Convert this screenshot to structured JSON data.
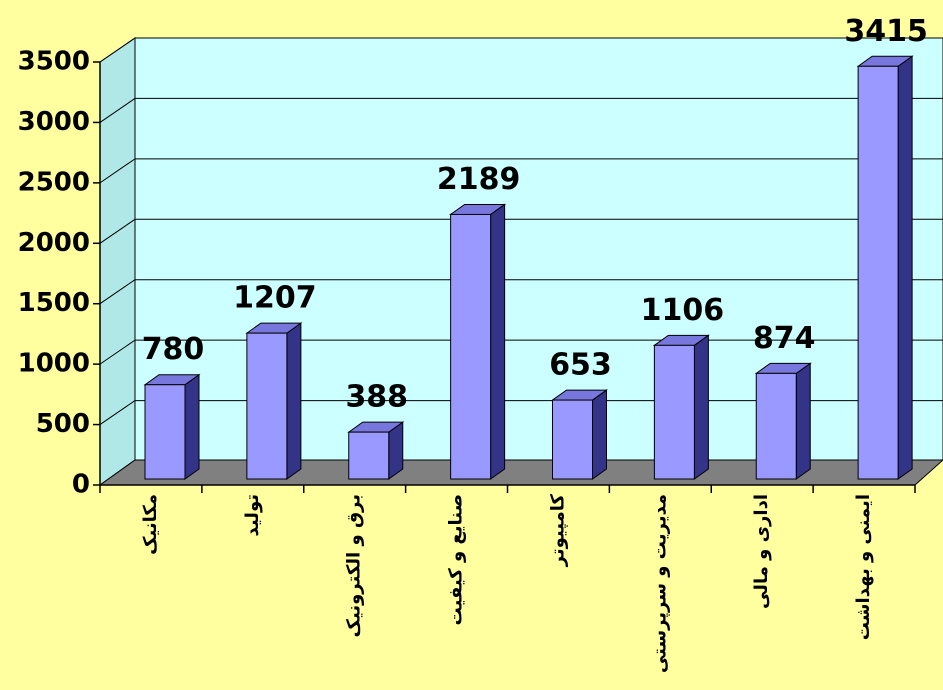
{
  "chart_data": {
    "type": "bar",
    "categories": [
      "مکانیک",
      "تولید",
      "برق و الکترونیک",
      "صنایع و کیفیت",
      "کامپیوتر",
      "مدیریت و سرپرستی",
      "اداری و مالی",
      "ایمنی و بهداشت"
    ],
    "values": [
      780,
      1207,
      388,
      2189,
      653,
      1106,
      874,
      3415
    ],
    "color": "#9999ff",
    "ylim": [
      0,
      3500
    ],
    "yticks": [
      0,
      500,
      1000,
      1500,
      2000,
      2500,
      3000,
      3500
    ],
    "grid": true
  }
}
